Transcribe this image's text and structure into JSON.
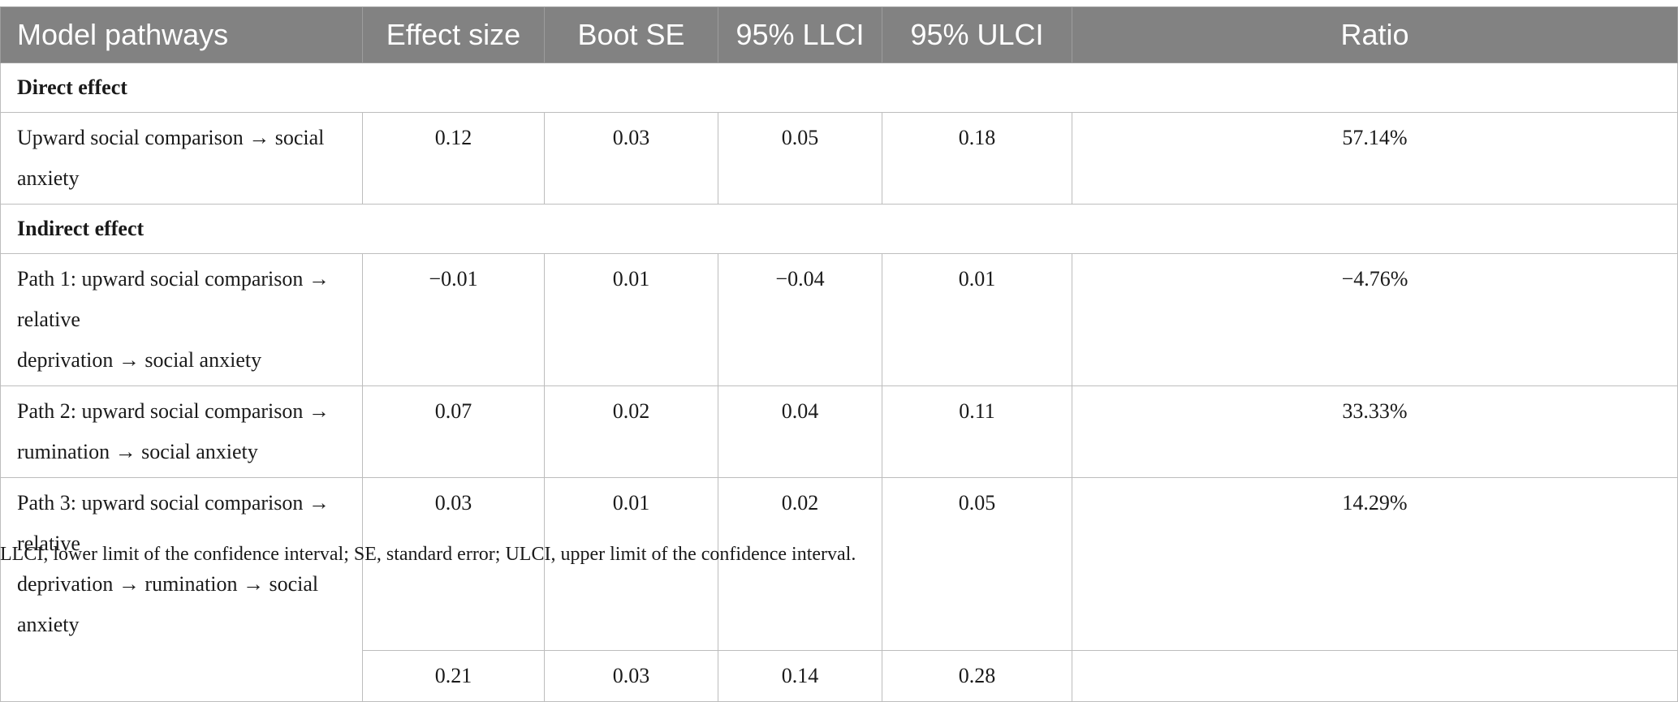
{
  "table": {
    "columns": [
      "Model pathways",
      "Effect size",
      "Boot SE",
      "95% LLCI",
      "95% ULCI",
      "Ratio"
    ],
    "sections": {
      "direct_label": "Direct effect",
      "indirect_label": "Indirect effect"
    },
    "rows": {
      "direct": {
        "pathway": "Upward social comparison → social anxiety",
        "effect": "0.12",
        "se": "0.03",
        "llci": "0.05",
        "ulci": "0.18",
        "ratio": "57.14%"
      },
      "path1": {
        "pathway_line1": "Path 1: upward social comparison → relative",
        "pathway_line2": "deprivation → social anxiety",
        "effect": "−0.01",
        "se": "0.01",
        "llci": "−0.04",
        "ulci": "0.01",
        "ratio": "−4.76%"
      },
      "path2": {
        "pathway_line1": "Path 2: upward social comparison →",
        "pathway_line2": "rumination → social anxiety",
        "effect": "0.07",
        "se": "0.02",
        "llci": "0.04",
        "ulci": "0.11",
        "ratio": "33.33%"
      },
      "path3": {
        "pathway_line1": "Path 3: upward social comparison → relative",
        "pathway_line2": "deprivation → rumination → social anxiety",
        "effect": "0.03",
        "se": "0.01",
        "llci": "0.02",
        "ulci": "0.05",
        "ratio": "14.29%"
      },
      "total": {
        "effect": "0.21",
        "se": "0.03",
        "llci": "0.14",
        "ulci": "0.28",
        "ratio": ""
      }
    }
  },
  "footnote": "LLCI, lower limit of the confidence interval; SE, standard error; ULCI, upper limit of the confidence interval."
}
